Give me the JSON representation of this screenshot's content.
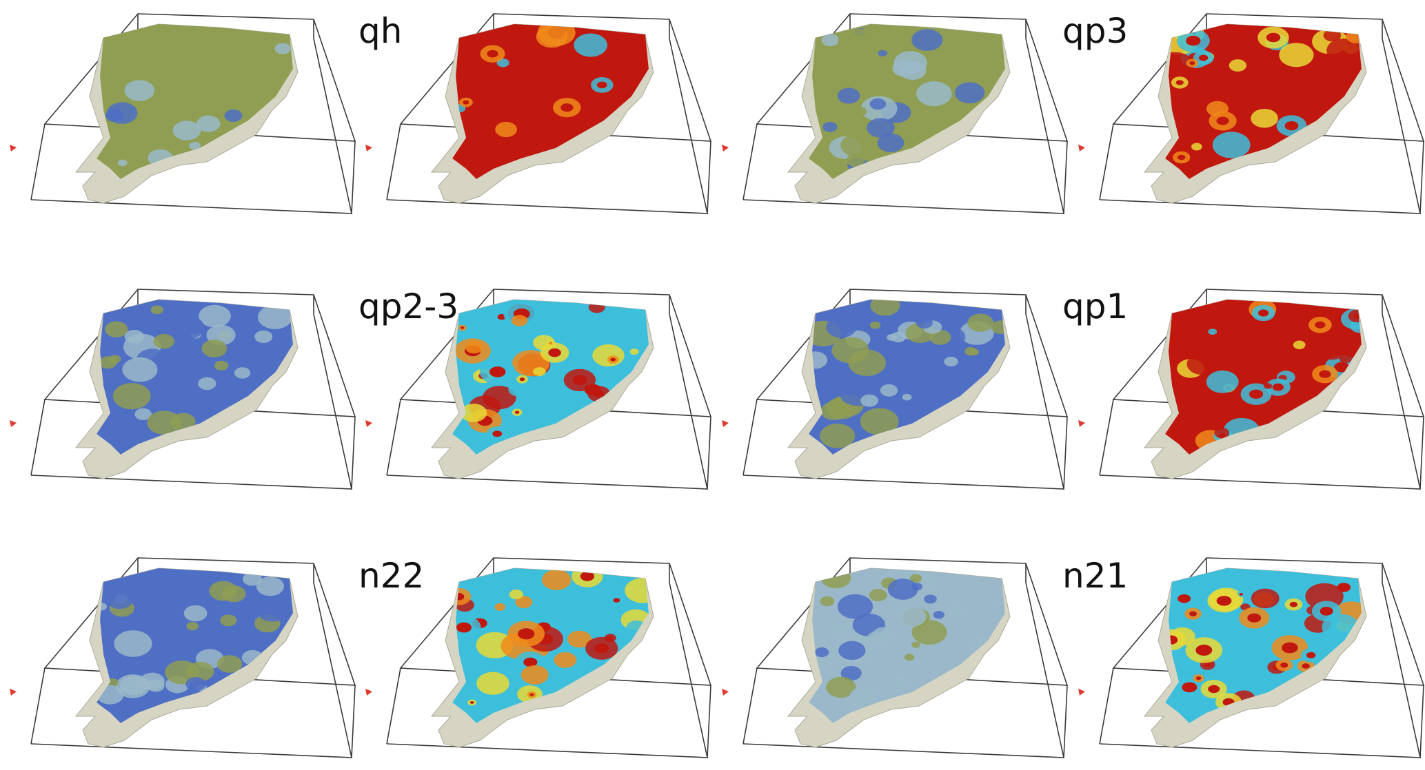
{
  "figure": {
    "panels": [
      {
        "label": "qh",
        "row": 0,
        "col": 0,
        "kind": "lithology",
        "coverage": 0.55
      },
      {
        "label": "qh",
        "row": 0,
        "col": 1,
        "kind": "thickness",
        "coverage": 0.55
      },
      {
        "label": "qp3",
        "row": 0,
        "col": 2,
        "kind": "lithology",
        "coverage": 0.8
      },
      {
        "label": "qp3",
        "row": 0,
        "col": 3,
        "kind": "thickness",
        "coverage": 0.8
      },
      {
        "label": "qp2-3",
        "row": 1,
        "col": 0,
        "kind": "lithology",
        "coverage": 0.95
      },
      {
        "label": "qp2-3",
        "row": 1,
        "col": 1,
        "kind": "thickness",
        "coverage": 0.95
      },
      {
        "label": "qp1",
        "row": 1,
        "col": 2,
        "kind": "lithology",
        "coverage": 0.95
      },
      {
        "label": "qp1",
        "row": 1,
        "col": 3,
        "kind": "thickness",
        "coverage": 0.95
      },
      {
        "label": "n22",
        "row": 2,
        "col": 0,
        "kind": "lithology",
        "coverage": 0.95
      },
      {
        "label": "n22",
        "row": 2,
        "col": 1,
        "kind": "thickness",
        "coverage": 0.95
      },
      {
        "label": "n21",
        "row": 2,
        "col": 2,
        "kind": "lithology",
        "coverage": 0.9
      },
      {
        "label": "n21",
        "row": 2,
        "col": 3,
        "kind": "thickness",
        "coverage": 0.9
      }
    ],
    "labels": [
      {
        "id": "label-qh",
        "text": "qh"
      },
      {
        "id": "label-qp3",
        "text": "qp3"
      },
      {
        "id": "label-qp2-3",
        "text": "qp2-3"
      },
      {
        "id": "label-qp1",
        "text": "qp1"
      },
      {
        "id": "label-n22",
        "text": "n22"
      },
      {
        "id": "label-n21",
        "text": "n21"
      }
    ],
    "colors": {
      "background": "#ffffff",
      "box_frame": "#3a3a3a",
      "base_map": "#d6d5c4",
      "lithology_sand": "#8f9e52",
      "lithology_clay": "#4f6fc4",
      "lithology_silt": "#9ab8c9",
      "thickness_high": "#c0170f",
      "thickness_mid": "#f08a1a",
      "thickness_midlow": "#e8d836",
      "thickness_low": "#3dbfdc",
      "axis_marker": "#e03a2f"
    }
  }
}
